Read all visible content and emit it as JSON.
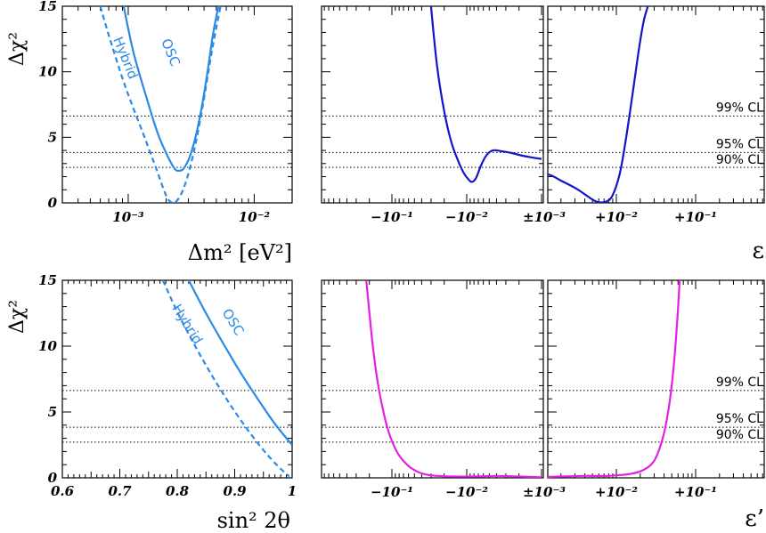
{
  "colors": {
    "light_blue": "#2a8ae6",
    "dark_blue": "#1414c8",
    "magenta": "#e61ee6",
    "frame": "#000000"
  },
  "labels": {
    "ylabel": "Δχ²",
    "xlabel_dm2": "Δm² [eV²]",
    "xlabel_sin": "sin² 2θ",
    "xlabel_eps": "ε",
    "xlabel_epsp": "ε’"
  },
  "chart_data": [
    {
      "type": "line",
      "panel": "top-left",
      "xlabel": "Δm² [eV²]",
      "ylabel": "Δχ²",
      "xscale": "log",
      "xlim": [
        0.0003,
        0.02
      ],
      "ylim": [
        0,
        15
      ],
      "xtick_labels": [
        "10⁻³",
        "10⁻²"
      ],
      "xticks": [
        0.001,
        0.01
      ],
      "yticks": [
        0,
        5,
        10,
        15
      ],
      "grid": false,
      "hlines": [
        2.71,
        3.84,
        6.63
      ],
      "series": [
        {
          "name": "OSC",
          "style": "solid",
          "color": "#2a8ae6",
          "x": [
            0.00092,
            0.0011,
            0.0014,
            0.0017,
            0.002,
            0.0023,
            0.0025,
            0.0028,
            0.0032,
            0.0037,
            0.0042,
            0.0047,
            0.0052
          ],
          "y": [
            15,
            11.5,
            8,
            5.4,
            3.8,
            2.7,
            2.45,
            2.7,
            4,
            6.5,
            9.6,
            12.8,
            15
          ]
        },
        {
          "name": "Hybrid",
          "style": "dashed",
          "color": "#2a8ae6",
          "x": [
            0.0006,
            0.0007,
            0.0009,
            0.0011,
            0.0013,
            0.0015,
            0.0017,
            0.0019,
            0.0021,
            0.0024,
            0.0028,
            0.0033,
            0.0039,
            0.0046,
            0.0054
          ],
          "y": [
            15,
            12.8,
            9.5,
            7.2,
            5.4,
            3.8,
            2.4,
            1.1,
            0.2,
            0.1,
            1.3,
            3.8,
            7.4,
            11.5,
            15
          ]
        }
      ]
    },
    {
      "type": "line",
      "panel": "top-right",
      "xlabel": "ε",
      "xscale": "symlog",
      "xlim": [
        -1,
        1
      ],
      "ylim": [
        0,
        15
      ],
      "xtick_labels": [
        "−10⁻¹",
        "−10⁻²",
        "±10⁻³",
        "+10⁻²",
        "+10⁻¹"
      ],
      "xticks": [
        -0.1,
        -0.01,
        0,
        0.01,
        0.1
      ],
      "hlines": [
        2.71,
        3.84,
        6.63
      ],
      "cl_labels": [
        "99% CL",
        "95% CL",
        "90% CL"
      ],
      "series": [
        {
          "name": "",
          "color": "#1414c8",
          "x": [
            -0.03,
            -0.025,
            -0.02,
            -0.016,
            -0.013,
            -0.011,
            -0.0095,
            -0.0085,
            -0.0075,
            -0.0065,
            -0.0055,
            -0.0045,
            -0.0035,
            -0.0025,
            -0.0018,
            -0.0013,
            -0.001
          ],
          "y": [
            15,
            10.5,
            7,
            4.6,
            3.2,
            2.3,
            1.8,
            1.6,
            1.9,
            2.8,
            3.6,
            4.0,
            3.95,
            3.8,
            3.6,
            3.45,
            3.35
          ]
        },
        {
          "name": "",
          "color": "#1414c8",
          "x": [
            0.001,
            0.0015,
            0.002,
            0.003,
            0.004,
            0.005,
            0.006,
            0.0075,
            0.009,
            0.011,
            0.013,
            0.016,
            0.019,
            0.022,
            0.025
          ],
          "y": [
            2.4,
            2.1,
            1.7,
            1.15,
            0.65,
            0.25,
            0.05,
            0.1,
            0.6,
            2.2,
            4.6,
            8.3,
            11.5,
            13.8,
            15
          ]
        }
      ]
    },
    {
      "type": "line",
      "panel": "bottom-left",
      "xlabel": "sin² 2θ",
      "ylabel": "Δχ²",
      "xlim": [
        0.6,
        1.0
      ],
      "ylim": [
        0,
        15
      ],
      "xtick_labels": [
        "0.6",
        "0.7",
        "0.8",
        "0.9",
        "1"
      ],
      "xticks": [
        0.6,
        0.7,
        0.8,
        0.9,
        1.0
      ],
      "yticks": [
        0,
        5,
        10,
        15
      ],
      "hlines": [
        2.71,
        3.84,
        6.63
      ],
      "series": [
        {
          "name": "OSC",
          "style": "solid",
          "color": "#2a8ae6",
          "x": [
            0.82,
            0.85,
            0.88,
            0.91,
            0.94,
            0.97,
            1.0
          ],
          "y": [
            15,
            12.5,
            10.2,
            8.0,
            6.0,
            4.1,
            2.5
          ]
        },
        {
          "name": "Hybrid",
          "style": "dashed",
          "color": "#2a8ae6",
          "x": [
            0.775,
            0.8,
            0.83,
            0.86,
            0.89,
            0.92,
            0.95,
            0.975,
            0.995
          ],
          "y": [
            15,
            12.6,
            10.1,
            7.8,
            5.7,
            3.8,
            2.1,
            0.9,
            0.1
          ]
        }
      ]
    },
    {
      "type": "line",
      "panel": "bottom-right",
      "xlabel": "ε’",
      "xscale": "symlog",
      "xlim": [
        -1,
        1
      ],
      "ylim": [
        0,
        15
      ],
      "xtick_labels": [
        "−10⁻¹",
        "−10⁻²",
        "±10⁻³",
        "+10⁻²",
        "+10⁻¹"
      ],
      "xticks": [
        -0.1,
        -0.01,
        0,
        0.01,
        0.1
      ],
      "hlines": [
        2.71,
        3.84,
        6.63
      ],
      "cl_labels": [
        "99% CL",
        "95% CL",
        "90% CL"
      ],
      "series": [
        {
          "name": "",
          "color": "#e61ee6",
          "x": [
            -0.22,
            -0.18,
            -0.15,
            -0.12,
            -0.1,
            -0.08,
            -0.06,
            -0.045,
            -0.035,
            -0.025,
            -0.015,
            -0.008,
            -0.004,
            -0.002,
            -0.001
          ],
          "y": [
            15,
            10,
            6.8,
            4.2,
            2.8,
            1.7,
            0.9,
            0.45,
            0.25,
            0.15,
            0.1,
            0.1,
            0.15,
            0.1,
            0.05
          ]
        },
        {
          "name": "",
          "color": "#e61ee6",
          "x": [
            0.001,
            0.002,
            0.004,
            0.008,
            0.015,
            0.022,
            0.03,
            0.038,
            0.045,
            0.052,
            0.058,
            0.063
          ],
          "y": [
            0.05,
            0.1,
            0.15,
            0.15,
            0.3,
            0.6,
            1.3,
            2.9,
            5.0,
            8.0,
            11.5,
            15
          ]
        }
      ]
    }
  ]
}
